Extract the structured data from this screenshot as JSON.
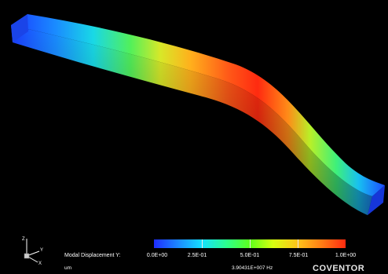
{
  "legend": {
    "title": "Modal Displacement Y:",
    "units": "um",
    "ticks": [
      "0.0E+00",
      "2.5E-01",
      "5.0E-01",
      "7.5E-01",
      "1.0E+00"
    ],
    "range": [
      0,
      1
    ]
  },
  "frequency": "3.90431E+007 Hz",
  "brand": "COVENTOR",
  "axes": {
    "z": "Z",
    "y": "Y",
    "x": "X"
  },
  "colors": {
    "background": "#000000",
    "low": "#1e2cff",
    "mid": "#5cff1c",
    "high": "#ff2a10"
  }
}
